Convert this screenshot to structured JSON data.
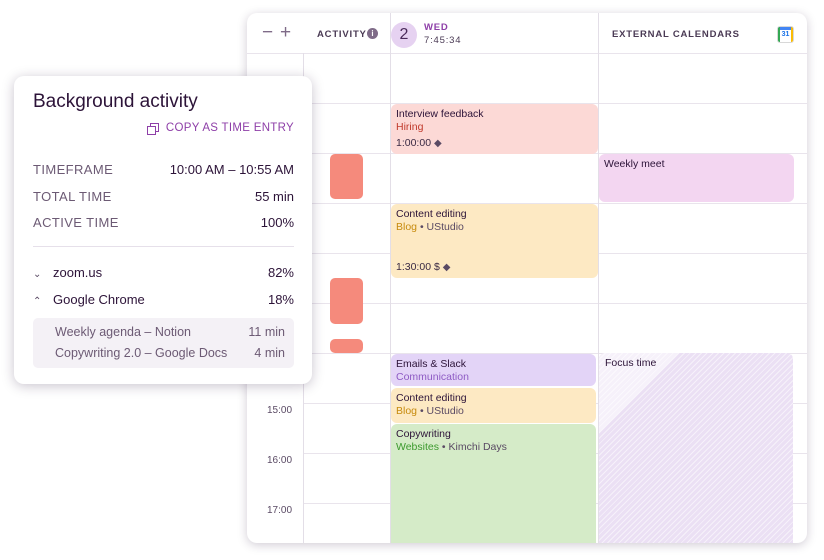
{
  "calendar": {
    "zoom_out": "−",
    "zoom_in": "+",
    "activity_label": "ACTIVITY",
    "info_icon": "i",
    "day_number": "2",
    "day_name": "WED",
    "clock": "7:45:34",
    "external_label": "EXTERNAL CALENDARS",
    "gcal_number": "31",
    "time_labels": [
      "15:00",
      "16:00",
      "17:00"
    ]
  },
  "events": {
    "interview": {
      "title": "Interview feedback",
      "project": "Hiring",
      "duration": "1:00:00",
      "tag_icon": "tag-icon",
      "color": "#fcd9d6"
    },
    "weekly": {
      "title": "Weekly meet",
      "color": "#f3d6f1"
    },
    "content1": {
      "title": "Content editing",
      "project": "Blog",
      "client": "UStudio",
      "duration": "1:30:00",
      "billable_icon": "$",
      "color": "#fde9c3"
    },
    "emails": {
      "title": "Emails & Slack",
      "project": "Communication",
      "color": "#e3d4f7"
    },
    "content2": {
      "title": "Content editing",
      "project": "Blog",
      "client": "UStudio",
      "color": "#fde9c3"
    },
    "copywriting": {
      "title": "Copywriting",
      "project": "Websites",
      "client": "Kimchi Days",
      "color": "#d5ebc8"
    },
    "focus": {
      "title": "Focus time"
    }
  },
  "colors": {
    "hiring": "#c0392b",
    "blog": "#c78b0e",
    "communication": "#8e5bc4",
    "websites": "#3c9a2e",
    "accent": "#8e3fa8",
    "activity_bar": "#f58a7c"
  },
  "panel": {
    "title": "Background activity",
    "copy_label": "COPY AS TIME ENTRY",
    "timeframe_label": "TIMEFRAME",
    "timeframe_value": "10:00 AM – 10:55 AM",
    "total_label": "TOTAL TIME",
    "total_value": "55 min",
    "active_label": "ACTIVE TIME",
    "active_value": "100%",
    "apps": [
      {
        "name": "zoom.us",
        "percent": "82%",
        "chevron": "chevron-down-icon"
      },
      {
        "name": "Google Chrome",
        "percent": "18%",
        "chevron": "chevron-up-icon"
      }
    ],
    "sub_items": [
      {
        "name": "Weekly agenda – Notion",
        "time": "11 min"
      },
      {
        "name": "Copywriting 2.0 – Google Docs",
        "time": "4 min"
      }
    ]
  }
}
